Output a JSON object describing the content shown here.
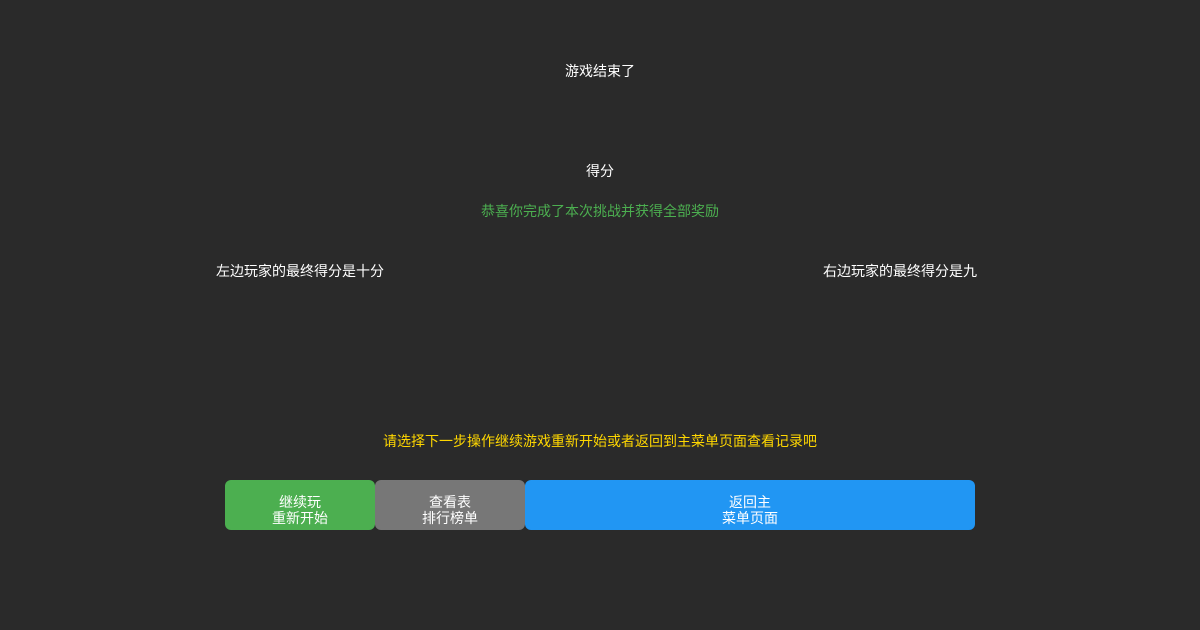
{
  "title": "游戏结束了",
  "score_label": "得分",
  "message": "恭喜你完成了本次挑战并获得全部奖励",
  "left_player": "左边玩家的最终得分是十分",
  "right_player": "右边玩家的最终得分是九",
  "prompt": "请选择下一步操作继续游戏重新开始或者返回到主菜单页面查看记录吧",
  "buttons": [
    {
      "line1": "继续玩",
      "line2": "重新开始",
      "color": "#4caf50"
    },
    {
      "line1": "查看表",
      "line2": "排行榜单",
      "color": "#777777"
    },
    {
      "line1": "返回主",
      "line2": "菜单页面",
      "color": "#2196f3"
    }
  ],
  "colors": {
    "background": "#2a2a2a",
    "message": "#4caf50",
    "prompt": "#ffd700",
    "text": "#ffffff"
  }
}
